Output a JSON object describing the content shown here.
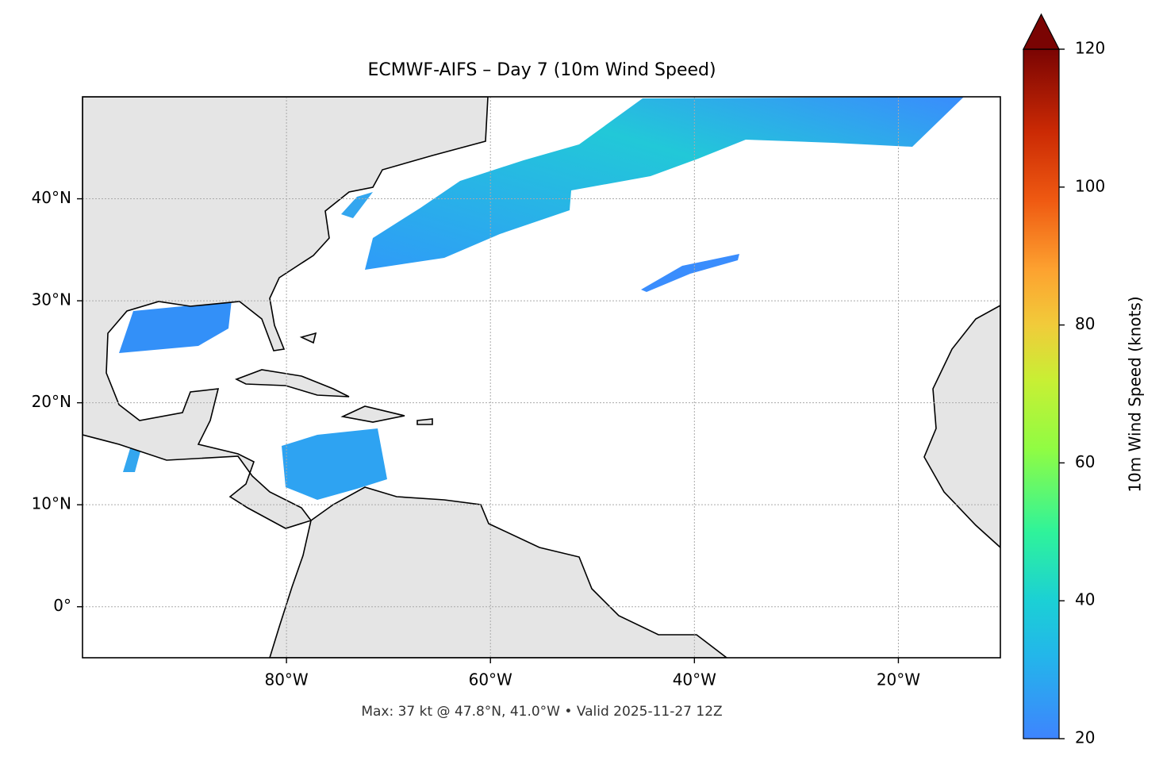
{
  "chart_data": {
    "type": "map",
    "title": "ECMWF-AIFS – Day 7 (10m Wind Speed)",
    "footnote": "Max: 37 kt @ 47.8°N, 41.0°W • Valid 2025-11-27 12Z",
    "xlim": [
      -100,
      -10
    ],
    "ylim": [
      -5,
      50
    ],
    "xticks": [
      {
        "value": -80,
        "label": "80°W"
      },
      {
        "value": -60,
        "label": "60°W"
      },
      {
        "value": -40,
        "label": "40°W"
      },
      {
        "value": -20,
        "label": "20°W"
      }
    ],
    "yticks": [
      {
        "value": 0,
        "label": "0°"
      },
      {
        "value": 10,
        "label": "10°N"
      },
      {
        "value": 20,
        "label": "20°N"
      },
      {
        "value": 30,
        "label": "30°N"
      },
      {
        "value": 40,
        "label": "40°N"
      }
    ],
    "grid": true,
    "colorbar": {
      "label": "10m Wind Speed (knots)",
      "lim": [
        20,
        120
      ],
      "ticks": [
        20,
        40,
        60,
        80,
        100,
        120
      ],
      "extend": "max"
    }
  }
}
